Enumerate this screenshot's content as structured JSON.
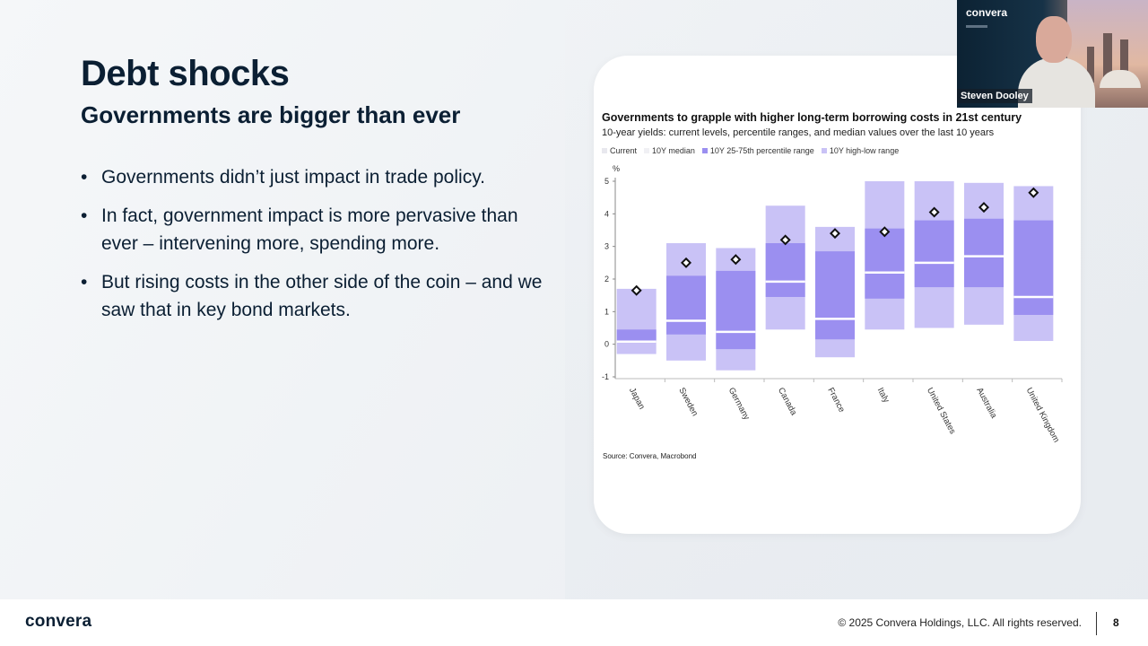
{
  "slide": {
    "title": "Debt shocks",
    "subtitle": "Governments are bigger than ever",
    "bullets": [
      "Governments didn’t just impact in trade policy.",
      "In fact, government impact is more pervasive than ever – intervening more, spending more.",
      "But rising costs in the other side of the coin – and we saw that in key bond markets."
    ]
  },
  "chart": {
    "title": "Governments to grapple with higher long-term borrowing costs in 21st century",
    "subtitle": "10-year yields: current levels, percentile ranges, and median values over the last 10 years",
    "legend": [
      {
        "label": "Current",
        "color": "#e8e8ee"
      },
      {
        "label": "10Y median",
        "color": "#f0f0f4"
      },
      {
        "label": "10Y 25-75th percentile range",
        "color": "#9b8ff0"
      },
      {
        "label": "10Y high-low range",
        "color": "#c9c2f6"
      }
    ],
    "y_unit": "%",
    "source": "Source: Convera, Macrobond"
  },
  "chart_data": {
    "type": "boxplot",
    "title": "Governments to grapple with higher long-term borrowing costs in 21st century",
    "subtitle": "10-year yields: current levels, percentile ranges, and median values over the last 10 years",
    "ylabel": "%",
    "ylim": [
      -1,
      5
    ],
    "yticks": [
      -1,
      0,
      1,
      2,
      3,
      4,
      5
    ],
    "categories": [
      "Japan",
      "Sweden",
      "Germany",
      "Canada",
      "France",
      "Italy",
      "United States",
      "Australia",
      "United Kingdom"
    ],
    "low": [
      -0.3,
      -0.5,
      -0.8,
      0.45,
      -0.4,
      0.45,
      0.5,
      0.6,
      0.1
    ],
    "high": [
      1.7,
      3.1,
      2.95,
      4.25,
      3.6,
      5.0,
      5.0,
      4.95,
      4.85
    ],
    "p25": [
      0.05,
      0.3,
      -0.15,
      1.45,
      0.15,
      1.4,
      1.75,
      1.75,
      0.9
    ],
    "p75": [
      0.45,
      2.1,
      2.25,
      3.1,
      2.85,
      3.55,
      3.8,
      3.85,
      3.8
    ],
    "median": [
      0.08,
      0.72,
      0.38,
      1.92,
      0.78,
      2.2,
      2.5,
      2.7,
      1.45
    ],
    "current": [
      1.65,
      2.5,
      2.6,
      3.2,
      3.4,
      3.45,
      4.05,
      4.2,
      4.65
    ],
    "colors": {
      "range": "#c9c2f6",
      "iqr": "#9b8ff0",
      "median": "#ffffff",
      "current_fill": "#ffffff",
      "current_stroke": "#111111"
    },
    "grid": false
  },
  "footer": {
    "logo": "convera",
    "copyright": "© 2025 Convera Holdings, LLC. All rights reserved.",
    "page_number": "8"
  },
  "video": {
    "logo": "convera",
    "presenter_name": "Steven Dooley"
  }
}
